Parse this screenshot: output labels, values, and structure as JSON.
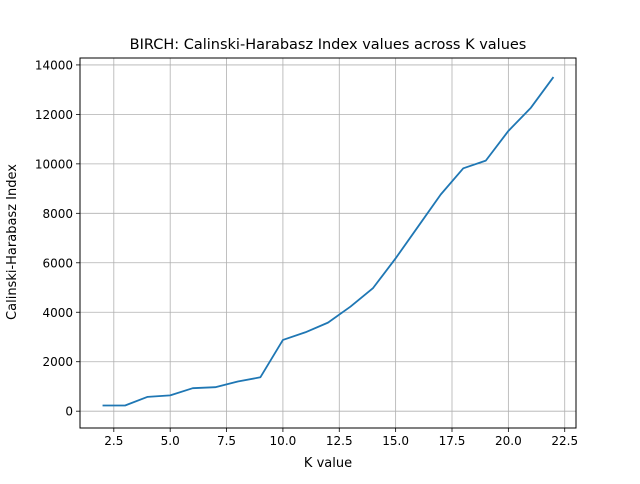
{
  "chart_data": {
    "type": "line",
    "title": "BIRCH: Calinski-Harabasz Index values across K values",
    "xlabel": "K value",
    "ylabel": "Calinski-Harabasz Index",
    "xlim": [
      1.0,
      23.0
    ],
    "ylim": [
      -680,
      14280
    ],
    "xticks": [
      2.5,
      5.0,
      7.5,
      10.0,
      12.5,
      15.0,
      17.5,
      20.0,
      22.5
    ],
    "xtick_labels": [
      "2.5",
      "5.0",
      "7.5",
      "10.0",
      "12.5",
      "15.0",
      "17.5",
      "20.0",
      "22.5"
    ],
    "yticks": [
      0,
      2000,
      4000,
      6000,
      8000,
      10000,
      12000,
      14000
    ],
    "ytick_labels": [
      "0",
      "2000",
      "4000",
      "6000",
      "8000",
      "10000",
      "12000",
      "14000"
    ],
    "grid": true,
    "series": [
      {
        "color": "#1f77b4",
        "x": [
          2,
          3,
          4,
          5,
          6,
          7,
          8,
          9,
          10,
          11,
          12,
          13,
          14,
          15,
          16,
          17,
          18,
          19,
          20,
          21,
          22
        ],
        "values": [
          230,
          230,
          580,
          640,
          930,
          970,
          1200,
          1370,
          2880,
          3190,
          3580,
          4230,
          4980,
          6180,
          7470,
          8760,
          9820,
          10130,
          11330,
          12270,
          13510
        ]
      }
    ]
  }
}
